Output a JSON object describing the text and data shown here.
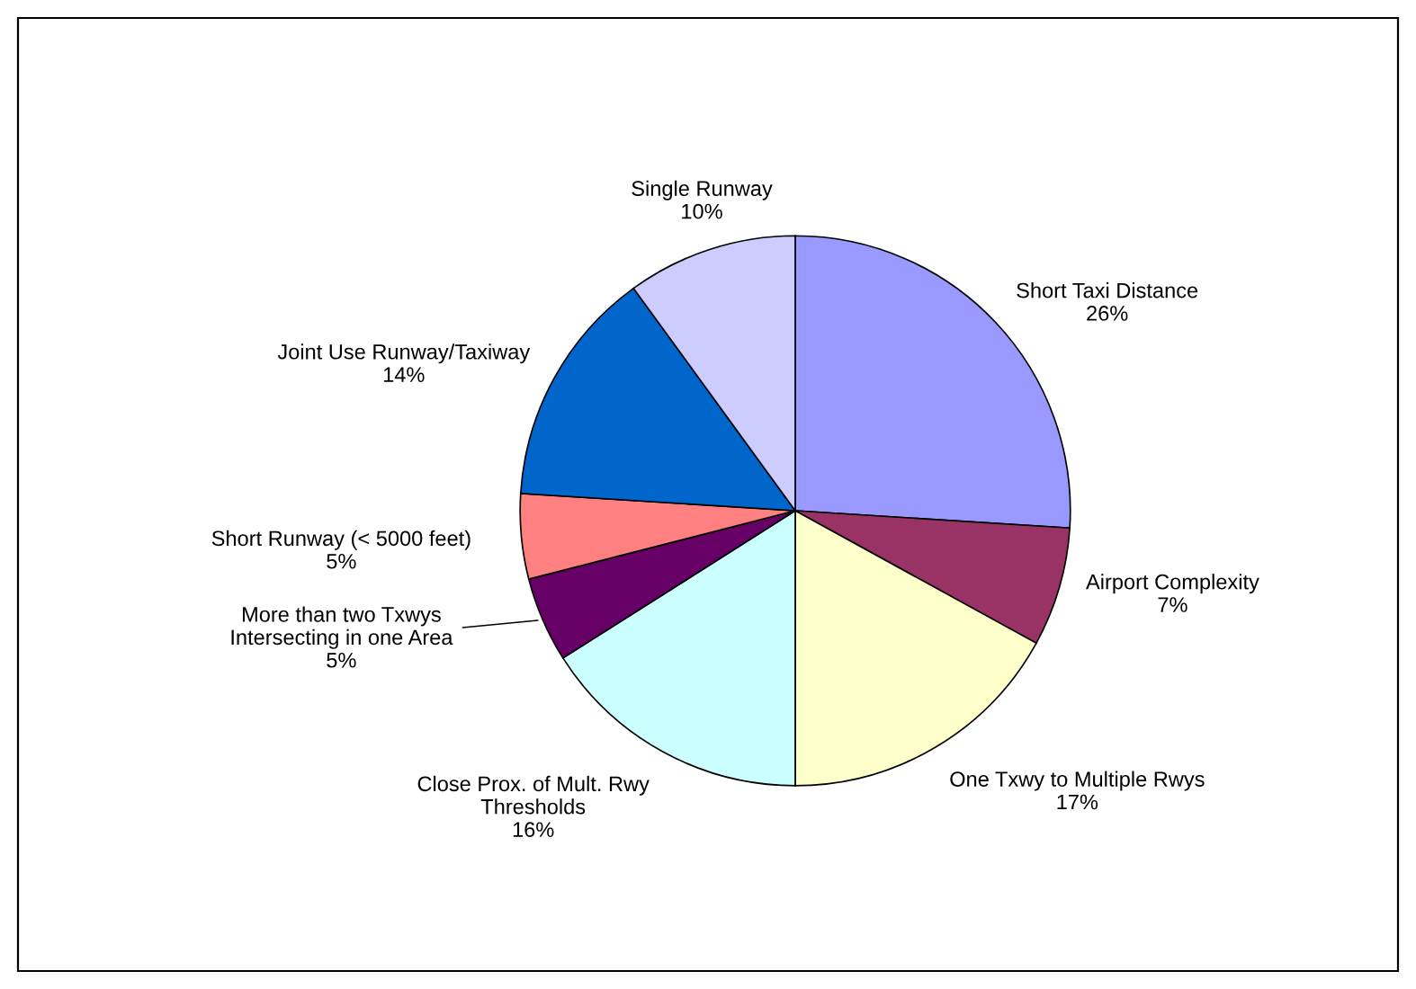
{
  "chart_data": {
    "type": "pie",
    "categories": [
      "Short Taxi Distance",
      "Airport Complexity",
      "One Txwy to Multiple Rwys",
      "Close Prox. of Mult. Rwy\nThresholds",
      "More than two Txwys\nIntersecting in one Area",
      "Short Runway (< 5000 feet)",
      "Joint Use Runway/Taxiway",
      "Single Runway"
    ],
    "values": [
      26,
      7,
      17,
      16,
      5,
      5,
      14,
      10
    ],
    "value_labels": [
      "26%",
      "7%",
      "17%",
      "16%",
      "5%",
      "5%",
      "14%",
      "10%"
    ],
    "colors": [
      "#9999ff",
      "#993366",
      "#ffffcc",
      "#ccffff",
      "#660066",
      "#ff8080",
      "#0066cc",
      "#ccccff"
    ],
    "legend": false
  }
}
